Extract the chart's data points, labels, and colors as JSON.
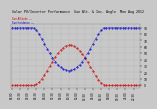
{
  "title": "Solar PV/Inverter Performance  Sun Alt. & Inc. Angle  Mon Aug 2012",
  "title2": "Sun Altitude  ---",
  "bg_color": "#c8c8c8",
  "plot_bg": "#c8c8c8",
  "grid_color": "#b0b0b0",
  "red_color": "#cc0000",
  "blue_color": "#0000cc",
  "ylim": [
    -5,
    95
  ],
  "yticks": [
    0,
    10,
    20,
    30,
    40,
    50,
    60,
    70,
    80,
    90
  ],
  "ytick_labels": [
    "0",
    "10",
    "20",
    "30",
    "40",
    "50",
    "60",
    "70",
    "80",
    "90"
  ],
  "sun_altitude": [
    0,
    0,
    0,
    0,
    0,
    0,
    0,
    0,
    0,
    2,
    5,
    10,
    16,
    23,
    30,
    37,
    44,
    50,
    55,
    59,
    62,
    63,
    63,
    61,
    58,
    54,
    49,
    43,
    36,
    29,
    22,
    15,
    9,
    4,
    1,
    0,
    0,
    0,
    0,
    0,
    0,
    0,
    0,
    0,
    0,
    0,
    0,
    0
  ],
  "sun_incidence": [
    90,
    90,
    90,
    90,
    90,
    90,
    90,
    90,
    90,
    86,
    80,
    73,
    65,
    57,
    50,
    43,
    37,
    32,
    28,
    25,
    24,
    23,
    24,
    25,
    28,
    32,
    37,
    43,
    50,
    57,
    65,
    73,
    80,
    86,
    90,
    90,
    90,
    90,
    90,
    90,
    90,
    90,
    90,
    90,
    90,
    90,
    90,
    90
  ],
  "n_points": 48,
  "x_tick_step": 3,
  "legend_fontsize": 2.0,
  "title_fontsize": 2.3,
  "tick_fontsize": 2.2
}
